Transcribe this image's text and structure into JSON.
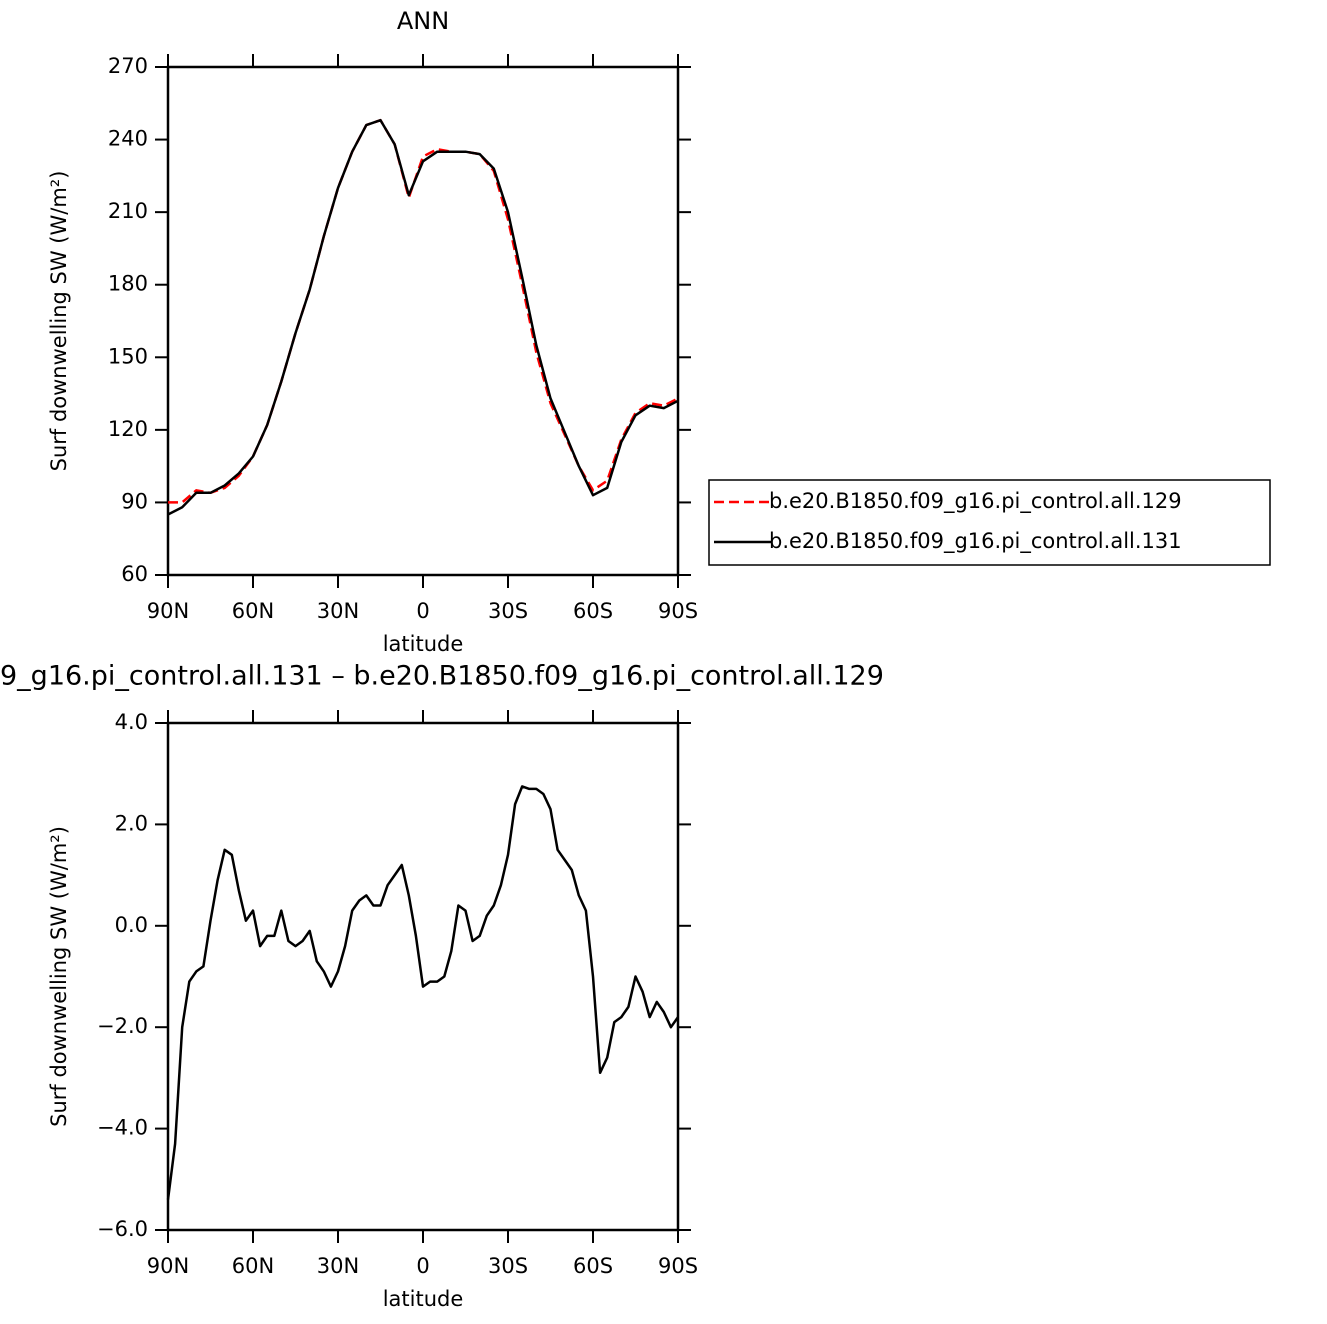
{
  "chart_data": [
    {
      "type": "line",
      "title": "ANN",
      "xlabel": "latitude",
      "ylabel": "Surf downwelling SW (W/m²)",
      "x": [
        90,
        85,
        80,
        75,
        70,
        65,
        60,
        55,
        50,
        45,
        40,
        35,
        30,
        25,
        20,
        15,
        10,
        5,
        0,
        -5,
        -10,
        -15,
        -20,
        -25,
        -30,
        -35,
        -40,
        -45,
        -50,
        -55,
        -60,
        -65,
        -70,
        -75,
        -80,
        -85,
        -90
      ],
      "series": [
        {
          "name": "b.e20.B1850.f09_g16.pi_control.all.129",
          "color": "#ff0000",
          "dash": "dashed",
          "values": [
            90,
            90,
            95,
            94,
            96,
            101,
            109,
            122,
            140,
            160,
            178,
            200,
            220,
            235,
            246,
            248,
            238,
            216,
            233,
            236,
            235,
            235,
            234,
            227,
            207,
            180,
            152,
            131,
            118,
            105,
            95,
            99,
            116,
            127,
            131,
            130,
            133
          ]
        },
        {
          "name": "b.e20.B1850.f09_g16.pi_control.all.131",
          "color": "#000000",
          "dash": "solid",
          "values": [
            85,
            88,
            94,
            94,
            97,
            102,
            109,
            122,
            140,
            160,
            178,
            200,
            220,
            235,
            246,
            248,
            238,
            217,
            231,
            235,
            235,
            235,
            234,
            228,
            210,
            183,
            155,
            133,
            119,
            105,
            93,
            96,
            115,
            126,
            130,
            129,
            132
          ]
        }
      ],
      "xlim": [
        90,
        -90
      ],
      "xticks": [
        {
          "value": 90,
          "label": "90N"
        },
        {
          "value": 60,
          "label": "60N"
        },
        {
          "value": 30,
          "label": "30N"
        },
        0,
        {
          "value": -30,
          "label": "30S"
        },
        {
          "value": -60,
          "label": "60S"
        },
        {
          "value": -90,
          "label": "90S"
        }
      ],
      "ylim": [
        60,
        270
      ],
      "yticks": [
        60,
        90,
        120,
        150,
        180,
        210,
        240,
        270
      ],
      "legend": "right"
    },
    {
      "type": "line",
      "title": "9_g16.pi_control.all.131 – b.e20.B1850.f09_g16.pi_control.all.129",
      "xlabel": "latitude",
      "ylabel": "Surf downwelling SW (W/m²)",
      "x": [
        90,
        87.5,
        85,
        82.5,
        80,
        77.5,
        75,
        72.5,
        70,
        67.5,
        65,
        62.5,
        60,
        57.5,
        55,
        52.5,
        50,
        47.5,
        45,
        42.5,
        40,
        37.5,
        35,
        32.5,
        30,
        27.5,
        25,
        22.5,
        20,
        17.5,
        15,
        12.5,
        10,
        7.5,
        5,
        2.5,
        0,
        -2.5,
        -5,
        -7.5,
        -10,
        -12.5,
        -15,
        -17.5,
        -20,
        -22.5,
        -25,
        -27.5,
        -30,
        -32.5,
        -35,
        -37.5,
        -40,
        -42.5,
        -45,
        -47.5,
        -50,
        -52.5,
        -55,
        -57.5,
        -60,
        -62.5,
        -65,
        -67.5,
        -70,
        -72.5,
        -75,
        -77.5,
        -80,
        -82.5,
        -85,
        -87.5,
        -90
      ],
      "values": [
        -5.4,
        -4.3,
        -2.0,
        -1.1,
        -0.9,
        -0.8,
        0.1,
        0.9,
        1.5,
        1.4,
        0.7,
        0.1,
        0.3,
        -0.4,
        -0.2,
        -0.2,
        0.3,
        -0.3,
        -0.4,
        -0.3,
        -0.1,
        -0.7,
        -0.9,
        -1.2,
        -0.9,
        -0.4,
        0.3,
        0.5,
        0.6,
        0.4,
        0.4,
        0.8,
        1.0,
        1.2,
        0.6,
        -0.2,
        -1.2,
        -1.1,
        -1.1,
        -1.0,
        -0.5,
        0.4,
        0.3,
        -0.3,
        -0.2,
        0.2,
        0.4,
        0.8,
        1.4,
        2.4,
        2.75,
        2.7,
        2.7,
        2.6,
        2.3,
        1.5,
        1.3,
        1.1,
        0.6,
        0.3,
        -1.0,
        -2.9,
        -2.6,
        -1.9,
        -1.8,
        -1.6,
        -1.0,
        -1.3,
        -1.8,
        -1.5,
        -1.7,
        -2.0,
        -1.8
      ],
      "color": "#000000",
      "xlim": [
        90,
        -90
      ],
      "xticks": [
        {
          "value": 90,
          "label": "90N"
        },
        {
          "value": 60,
          "label": "60N"
        },
        {
          "value": 30,
          "label": "30N"
        },
        0,
        {
          "value": -30,
          "label": "30S"
        },
        {
          "value": -60,
          "label": "60S"
        },
        {
          "value": -90,
          "label": "90S"
        }
      ],
      "ylim": [
        -6,
        4
      ],
      "yticks": [
        {
          "value": -6,
          "label": "−6.0"
        },
        {
          "value": -4,
          "label": "−4.0"
        },
        {
          "value": -2,
          "label": "−2.0"
        },
        {
          "value": 0,
          "label": "0.0"
        },
        {
          "value": 2,
          "label": "2.0"
        },
        {
          "value": 4,
          "label": "4.0"
        }
      ]
    }
  ]
}
